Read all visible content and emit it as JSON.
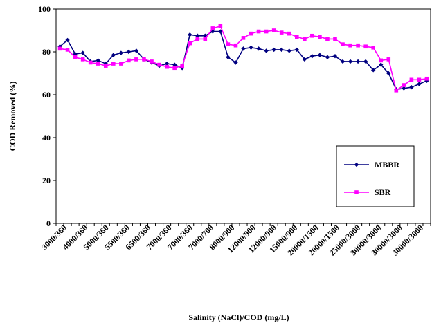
{
  "chart_data": {
    "type": "line",
    "title": "",
    "xlabel": "Salinity (NaCl)/COD (mg/L)",
    "ylabel": "COD Removed (%)",
    "ylim": [
      0,
      100
    ],
    "yticks": [
      0,
      20,
      40,
      60,
      80,
      100
    ],
    "grid": false,
    "legend_position": "bottom-right",
    "x_tick_labels": [
      "3000/360",
      "4000/360",
      "5000/360",
      "5500/360",
      "6500/360",
      "7000/360",
      "7000/360",
      "7000/700",
      "8000/900",
      "12000/900",
      "12000/900",
      "15000/900",
      "20000/1500",
      "20000/1500",
      "25000/3000",
      "30000/3000",
      "30000/3000",
      "30000/3000"
    ],
    "series": [
      {
        "name": "MBBR",
        "color": "#000080",
        "marker": "diamond",
        "values": [
          82.5,
          85.5,
          79,
          79.5,
          75.5,
          76,
          74.5,
          78.5,
          79.5,
          80,
          80.5,
          76.5,
          75,
          73.5,
          74.5,
          74,
          72.5,
          88,
          87.5,
          87.5,
          89.5,
          89.5,
          77.5,
          75,
          81.5,
          82,
          81.5,
          80.5,
          81,
          81,
          80.5,
          81,
          76.5,
          78,
          78.5,
          77.5,
          78,
          75.5,
          75.5,
          75.5,
          75.5,
          71.5,
          74,
          70,
          62.5,
          63,
          63.5,
          65,
          66.5
        ]
      },
      {
        "name": "SBR",
        "color": "#ff00ff",
        "marker": "square",
        "values": [
          81.5,
          81,
          77.5,
          76.5,
          75,
          74.5,
          73.5,
          74.5,
          74.5,
          76,
          76.5,
          76.5,
          75.5,
          74,
          73,
          72.5,
          73.5,
          84,
          86,
          86,
          91,
          92,
          83.5,
          83,
          86.5,
          88.5,
          89.5,
          89.5,
          90,
          89,
          88.5,
          87,
          86,
          87.5,
          87,
          86,
          86,
          83.5,
          83,
          83,
          82.5,
          82,
          76,
          76.5,
          62,
          64.5,
          67,
          67,
          67.5
        ]
      }
    ]
  }
}
